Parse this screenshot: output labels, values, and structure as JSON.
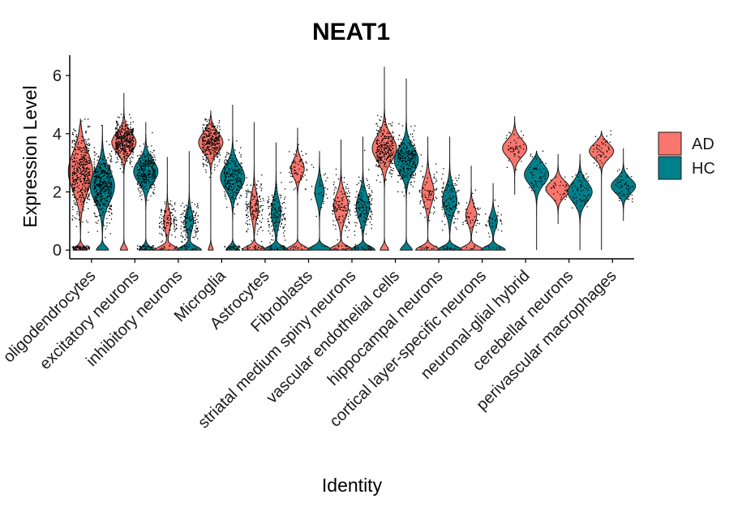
{
  "chart_data": {
    "type": "violin",
    "title": "NEAT1",
    "xlabel": "Identity",
    "ylabel": "Expression Level",
    "ylim": [
      -0.3,
      6.7
    ],
    "yticks": [
      0,
      2,
      4,
      6
    ],
    "legend_position": "right",
    "categories": [
      "oligodendrocytes",
      "excitatory neurons",
      "inhibitory neurons",
      "Microglia",
      "Astrocytes",
      "Fibroblasts",
      "striatal medium spiny neurons",
      "vascular endothelial cells",
      "hippocampal neurons",
      "cortical layer-specific neurons",
      "neuronal-glial hybrid",
      "cerebellar neurons",
      "perivascular macrophages"
    ],
    "series": [
      {
        "name": "AD",
        "color": "#F8766D",
        "violins": [
          {
            "min": 0,
            "max": 4.5,
            "zero_width": 0.55,
            "peak_at": 2.7,
            "peak_width": 1.0,
            "spread": 1.6,
            "points": 500
          },
          {
            "min": 0,
            "max": 5.4,
            "zero_width": 0.3,
            "peak_at": 3.7,
            "peak_width": 1.0,
            "spread": 0.8,
            "points": 420
          },
          {
            "min": 0,
            "max": 3.2,
            "zero_width": 1.0,
            "peak_at": 1.0,
            "peak_width": 0.3,
            "spread": 0.8,
            "points": 120
          },
          {
            "min": 0,
            "max": 4.8,
            "zero_width": 0.2,
            "peak_at": 3.7,
            "peak_width": 1.0,
            "spread": 0.8,
            "points": 300
          },
          {
            "min": 0,
            "max": 4.4,
            "zero_width": 1.0,
            "peak_at": 1.5,
            "peak_width": 0.35,
            "spread": 1.0,
            "points": 180
          },
          {
            "min": 0,
            "max": 4.2,
            "zero_width": 1.0,
            "peak_at": 2.8,
            "peak_width": 0.55,
            "spread": 0.7,
            "points": 80
          },
          {
            "min": 0,
            "max": 3.8,
            "zero_width": 1.0,
            "peak_at": 1.5,
            "peak_width": 0.6,
            "spread": 1.0,
            "points": 150
          },
          {
            "min": 0,
            "max": 6.3,
            "zero_width": 0.35,
            "peak_at": 3.5,
            "peak_width": 1.0,
            "spread": 1.0,
            "points": 260
          },
          {
            "min": 0,
            "max": 3.9,
            "zero_width": 1.0,
            "peak_at": 2.0,
            "peak_width": 0.5,
            "spread": 1.0,
            "points": 90
          },
          {
            "min": 0,
            "max": 2.9,
            "zero_width": 1.0,
            "peak_at": 1.2,
            "peak_width": 0.45,
            "spread": 0.7,
            "points": 50
          },
          {
            "min": 1.9,
            "max": 4.6,
            "zero_width": 0.0,
            "peak_at": 3.5,
            "peak_width": 1.0,
            "spread": 0.7,
            "points": 50
          },
          {
            "min": 0.9,
            "max": 3.3,
            "zero_width": 0.0,
            "peak_at": 2.1,
            "peak_width": 1.0,
            "spread": 0.6,
            "points": 35
          },
          {
            "min": 0,
            "max": 4.1,
            "zero_width": 0.0,
            "peak_at": 3.4,
            "peak_width": 1.0,
            "spread": 0.6,
            "points": 50
          }
        ]
      },
      {
        "name": "HC",
        "color": "#00808B",
        "violins": [
          {
            "min": 0,
            "max": 4.3,
            "zero_width": 0.5,
            "peak_at": 2.2,
            "peak_width": 1.0,
            "spread": 1.3,
            "points": 420
          },
          {
            "min": 0,
            "max": 4.4,
            "zero_width": 0.55,
            "peak_at": 2.7,
            "peak_width": 1.0,
            "spread": 0.9,
            "points": 330
          },
          {
            "min": 0,
            "max": 3.4,
            "zero_width": 1.0,
            "peak_at": 1.0,
            "peak_width": 0.35,
            "spread": 0.8,
            "points": 140
          },
          {
            "min": 0,
            "max": 5.0,
            "zero_width": 0.55,
            "peak_at": 2.5,
            "peak_width": 1.0,
            "spread": 1.0,
            "points": 260
          },
          {
            "min": 0,
            "max": 3.7,
            "zero_width": 1.0,
            "peak_at": 1.3,
            "peak_width": 0.4,
            "spread": 1.0,
            "points": 160
          },
          {
            "min": 0,
            "max": 3.4,
            "zero_width": 0.9,
            "peak_at": 2.0,
            "peak_width": 0.35,
            "spread": 0.8,
            "points": 35
          },
          {
            "min": 0,
            "max": 3.9,
            "zero_width": 1.0,
            "peak_at": 1.5,
            "peak_width": 0.55,
            "spread": 1.0,
            "points": 180
          },
          {
            "min": 0,
            "max": 5.9,
            "zero_width": 0.5,
            "peak_at": 3.1,
            "peak_width": 1.0,
            "spread": 1.0,
            "points": 260
          },
          {
            "min": 0,
            "max": 3.9,
            "zero_width": 1.0,
            "peak_at": 1.7,
            "peak_width": 0.6,
            "spread": 1.0,
            "points": 140
          },
          {
            "min": 0,
            "max": 2.3,
            "zero_width": 1.0,
            "peak_at": 1.0,
            "peak_width": 0.35,
            "spread": 0.6,
            "points": 45
          },
          {
            "min": 0,
            "max": 3.4,
            "zero_width": 0.0,
            "peak_at": 2.6,
            "peak_width": 1.0,
            "spread": 0.8,
            "points": 60
          },
          {
            "min": 0,
            "max": 3.3,
            "zero_width": 0.0,
            "peak_at": 2.0,
            "peak_width": 1.0,
            "spread": 0.8,
            "points": 70
          },
          {
            "min": 1.0,
            "max": 3.5,
            "zero_width": 0.0,
            "peak_at": 2.2,
            "peak_width": 1.0,
            "spread": 0.6,
            "points": 60
          }
        ]
      }
    ]
  }
}
